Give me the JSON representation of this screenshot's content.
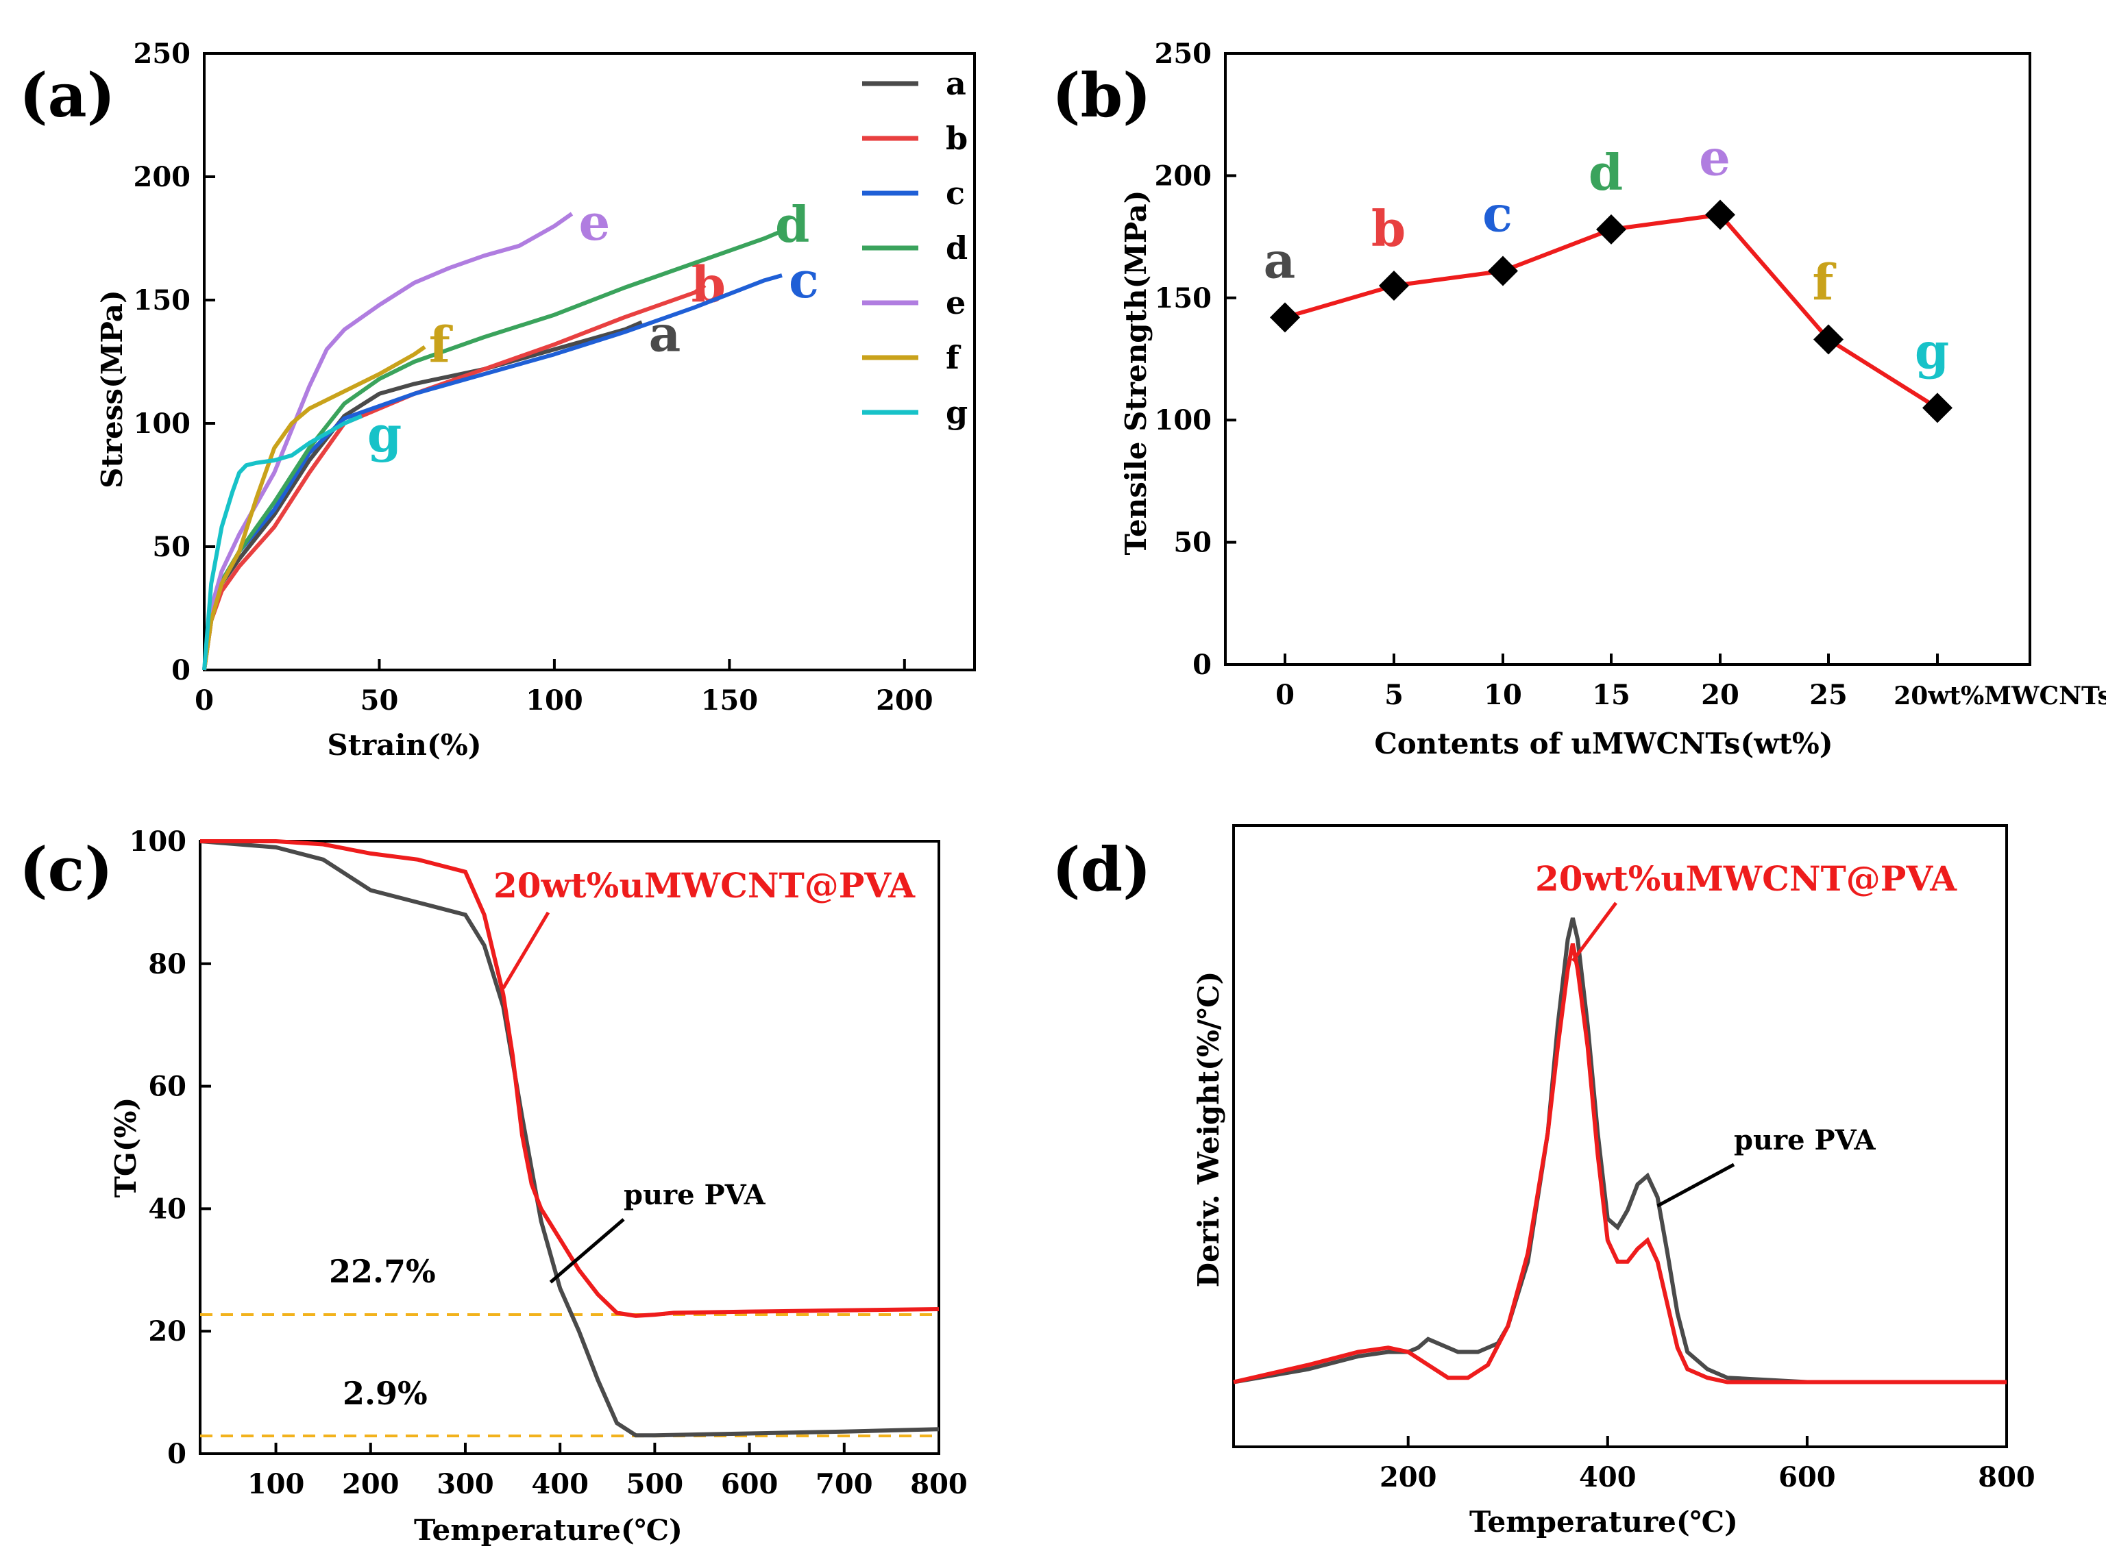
{
  "colors": {
    "a": "#4a4a4a",
    "b": "#e84040",
    "c": "#1f5fd6",
    "d": "#3aa35c",
    "e": "#b07de0",
    "f": "#c9a21b",
    "g": "#17c2c8",
    "red": "#ee1c1c",
    "dash": "#f2b21c",
    "axis": "#000000"
  },
  "chart_data": [
    {
      "panel": "(a)",
      "type": "line",
      "xlabel": "Strain(%)",
      "ylabel": "Stress(MPa)",
      "xlim": [
        0,
        220
      ],
      "ylim": [
        0,
        250
      ],
      "xticks": [
        "0",
        "50",
        "100",
        "150",
        "200"
      ],
      "yticks": [
        "0",
        "50",
        "100",
        "150",
        "200",
        "250"
      ],
      "legend": [
        "a",
        "b",
        "c",
        "d",
        "e",
        "f",
        "g"
      ],
      "series": [
        {
          "name": "a",
          "x": [
            0,
            2,
            5,
            10,
            20,
            30,
            40,
            50,
            60,
            80,
            100,
            120,
            125
          ],
          "y": [
            0,
            20,
            35,
            45,
            63,
            85,
            103,
            112,
            116,
            122,
            130,
            138,
            141
          ],
          "end_label": "a"
        },
        {
          "name": "b",
          "x": [
            0,
            2,
            5,
            10,
            20,
            30,
            40,
            60,
            80,
            100,
            120,
            140,
            143
          ],
          "y": [
            0,
            20,
            32,
            42,
            58,
            80,
            100,
            112,
            122,
            132,
            143,
            153,
            156
          ],
          "end_label": "b"
        },
        {
          "name": "c",
          "x": [
            0,
            2,
            5,
            10,
            20,
            30,
            40,
            60,
            80,
            100,
            120,
            140,
            160,
            165
          ],
          "y": [
            0,
            22,
            35,
            48,
            65,
            88,
            102,
            112,
            120,
            128,
            137,
            147,
            158,
            160
          ],
          "end_label": "c"
        },
        {
          "name": "d",
          "x": [
            0,
            2,
            5,
            10,
            20,
            30,
            40,
            50,
            60,
            80,
            100,
            120,
            140,
            160,
            165
          ],
          "y": [
            0,
            22,
            36,
            48,
            68,
            90,
            108,
            118,
            125,
            135,
            144,
            155,
            165,
            175,
            178
          ],
          "end_label": "d"
        },
        {
          "name": "e",
          "x": [
            0,
            2,
            5,
            10,
            20,
            30,
            35,
            40,
            50,
            60,
            70,
            80,
            90,
            100,
            105
          ],
          "y": [
            0,
            25,
            40,
            55,
            80,
            115,
            130,
            138,
            148,
            157,
            163,
            168,
            172,
            180,
            185
          ],
          "end_label": "e"
        },
        {
          "name": "f",
          "x": [
            0,
            2,
            5,
            10,
            15,
            20,
            25,
            30,
            40,
            50,
            60,
            63
          ],
          "y": [
            0,
            20,
            35,
            48,
            70,
            90,
            100,
            106,
            113,
            120,
            128,
            131
          ],
          "end_label": "f"
        },
        {
          "name": "g",
          "x": [
            0,
            2,
            5,
            8,
            10,
            12,
            15,
            20,
            25,
            30,
            40,
            45
          ],
          "y": [
            0,
            35,
            58,
            72,
            80,
            83,
            84,
            85,
            87,
            92,
            100,
            103
          ],
          "end_label": "g"
        }
      ]
    },
    {
      "panel": "(b)",
      "type": "line",
      "xlabel": "Contents of uMWCNTs(wt%)",
      "ylabel": "Tensile Strength(MPa)",
      "ylim": [
        0,
        250
      ],
      "yticks": [
        "0",
        "50",
        "100",
        "150",
        "200",
        "250"
      ],
      "categories": [
        "0",
        "5",
        "10",
        "15",
        "20",
        "25",
        "20wt%MWCNTs"
      ],
      "values": [
        142,
        155,
        161,
        178,
        184,
        133,
        105
      ],
      "point_labels": [
        "a",
        "b",
        "c",
        "d",
        "e",
        "f",
        "g"
      ]
    },
    {
      "panel": "(c)",
      "type": "line",
      "xlabel": "Temperature(℃)",
      "ylabel": "TG(%)",
      "xlim": [
        20,
        800
      ],
      "ylim": [
        0,
        100
      ],
      "xticks": [
        "100",
        "200",
        "300",
        "400",
        "500",
        "600",
        "700",
        "800"
      ],
      "yticks": [
        "0",
        "20",
        "40",
        "60",
        "80",
        "100"
      ],
      "series": [
        {
          "name": "pure PVA",
          "x": [
            20,
            100,
            150,
            200,
            250,
            300,
            320,
            340,
            360,
            380,
            400,
            420,
            440,
            460,
            480,
            500,
            600,
            700,
            800
          ],
          "y": [
            100,
            99,
            97,
            92,
            90,
            88,
            83,
            73,
            55,
            38,
            27,
            20,
            12,
            5,
            3,
            3,
            3.3,
            3.6,
            4
          ]
        },
        {
          "name": "20wt%uMWCNT@PVA",
          "x": [
            20,
            100,
            150,
            200,
            250,
            300,
            320,
            340,
            350,
            360,
            370,
            380,
            400,
            420,
            440,
            460,
            480,
            500,
            520,
            600,
            700,
            800
          ],
          "y": [
            100,
            100,
            99.5,
            98,
            97,
            95,
            88,
            75,
            65,
            52,
            44,
            40,
            35,
            30,
            26,
            23,
            22.5,
            22.7,
            23,
            23.2,
            23.4,
            23.6
          ]
        }
      ],
      "annotations": [
        "20wt%uMWCNT@PVA",
        "pure PVA",
        "22.7%",
        "2.9%"
      ],
      "reference_lines": [
        22.7,
        2.9
      ]
    },
    {
      "panel": "(d)",
      "type": "line",
      "xlabel": "Temperature(℃)",
      "ylabel": "Deriv. Weight(%/℃)",
      "xlim": [
        25,
        800
      ],
      "ylim": [
        0,
        1.1
      ],
      "xticks": [
        "200",
        "400",
        "600",
        "800"
      ],
      "series": [
        {
          "name": "pure PVA",
          "x": [
            25,
            100,
            150,
            180,
            200,
            210,
            220,
            230,
            250,
            270,
            290,
            300,
            320,
            340,
            350,
            360,
            365,
            370,
            380,
            390,
            400,
            410,
            420,
            430,
            440,
            450,
            460,
            470,
            480,
            500,
            520,
            600,
            700,
            800
          ],
          "y": [
            0.02,
            0.05,
            0.08,
            0.09,
            0.09,
            0.1,
            0.12,
            0.11,
            0.09,
            0.09,
            0.11,
            0.15,
            0.3,
            0.6,
            0.85,
            1.05,
            1.1,
            1.05,
            0.85,
            0.6,
            0.4,
            0.38,
            0.42,
            0.48,
            0.5,
            0.45,
            0.32,
            0.18,
            0.09,
            0.05,
            0.03,
            0.02,
            0.02,
            0.02
          ]
        },
        {
          "name": "20wt%uMWCNT@PVA",
          "x": [
            25,
            100,
            150,
            180,
            200,
            220,
            240,
            260,
            280,
            300,
            320,
            340,
            350,
            360,
            365,
            370,
            380,
            390,
            400,
            410,
            420,
            430,
            440,
            450,
            460,
            470,
            480,
            500,
            520,
            600,
            700,
            800
          ],
          "y": [
            0.02,
            0.06,
            0.09,
            0.1,
            0.09,
            0.06,
            0.03,
            0.03,
            0.06,
            0.15,
            0.32,
            0.6,
            0.8,
            0.98,
            1.04,
            0.98,
            0.8,
            0.55,
            0.35,
            0.3,
            0.3,
            0.33,
            0.35,
            0.3,
            0.2,
            0.1,
            0.05,
            0.03,
            0.02,
            0.02,
            0.02,
            0.02
          ]
        }
      ],
      "annotations": [
        "20wt%uMWCNT@PVA",
        "pure PVA"
      ]
    }
  ]
}
